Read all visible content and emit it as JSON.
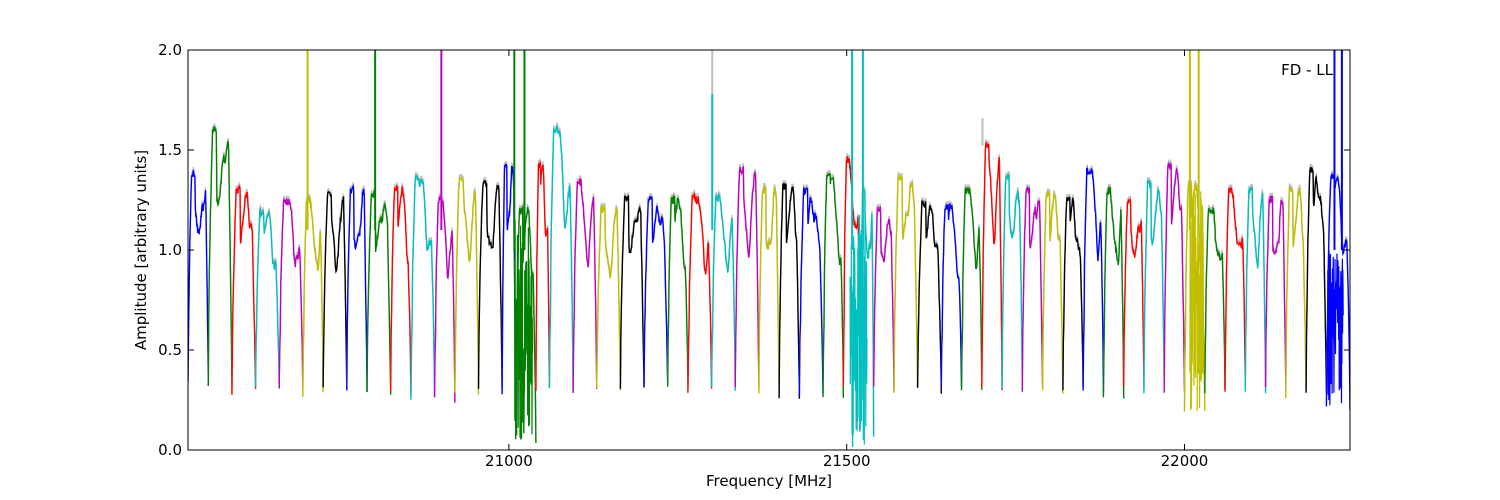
{
  "chart_data": {
    "type": "line",
    "title": "",
    "xlabel": "Frequency [MHz]",
    "ylabel": "Amplitude [arbitrary units]",
    "xlim": [
      20525,
      22245
    ],
    "ylim": [
      0.0,
      2.0
    ],
    "x_ticks": [
      21000,
      21500,
      22000
    ],
    "x_tick_labels": [
      "21000",
      "21500",
      "22000"
    ],
    "y_ticks": [
      0.0,
      0.5,
      1.0,
      1.5,
      2.0
    ],
    "y_tick_labels": [
      "0.0",
      "0.5",
      "1.0",
      "1.5",
      "2.0"
    ],
    "grid": false,
    "annotation": "FD - LL",
    "raw_trace_color": "#bfbfbf",
    "series_colors": [
      "#0000ff",
      "#008000",
      "#ff0000",
      "#00bfbf",
      "#bf00bf",
      "#bfbf00",
      "#000000"
    ],
    "windows": [
      {
        "start": 20525,
        "end": 20555,
        "color": "#0000ff",
        "peak": 1.38,
        "base": 0.32
      },
      {
        "start": 20555,
        "end": 20590,
        "color": "#008000",
        "peak": 1.6,
        "base": 0.32
      },
      {
        "start": 20590,
        "end": 20625,
        "color": "#ff0000",
        "peak": 1.3,
        "base": 0.29
      },
      {
        "start": 20625,
        "end": 20660,
        "color": "#00bfbf",
        "peak": 1.19,
        "base": 0.3
      },
      {
        "start": 20660,
        "end": 20695,
        "color": "#bf00bf",
        "peak": 1.24,
        "base": 0.3
      },
      {
        "start": 20695,
        "end": 20725,
        "color": "#bfbf00",
        "peak": 1.25,
        "base": 0.28
      },
      {
        "start": 20725,
        "end": 20760,
        "color": "#000000",
        "peak": 1.28,
        "base": 0.3
      },
      {
        "start": 20760,
        "end": 20790,
        "color": "#0000ff",
        "peak": 1.3,
        "base": 0.3
      },
      {
        "start": 20790,
        "end": 20825,
        "color": "#008000",
        "peak": 1.28,
        "base": 0.27
      },
      {
        "start": 20825,
        "end": 20855,
        "color": "#ff0000",
        "peak": 1.3,
        "base": 0.29
      },
      {
        "start": 20855,
        "end": 20890,
        "color": "#00bfbf",
        "peak": 1.35,
        "base": 0.27
      },
      {
        "start": 20890,
        "end": 20920,
        "color": "#bf00bf",
        "peak": 1.25,
        "base": 0.25
      },
      {
        "start": 20920,
        "end": 20955,
        "color": "#bfbf00",
        "peak": 1.35,
        "base": 0.27
      },
      {
        "start": 20955,
        "end": 20990,
        "color": "#000000",
        "peak": 1.33,
        "base": 0.3
      },
      {
        "start": 20990,
        "end": 21010,
        "color": "#0000ff",
        "peak": 1.43,
        "base": 0.29
      },
      {
        "start": 21010,
        "end": 21040,
        "color": "#008000",
        "peak": 1.2,
        "base": 0.05
      },
      {
        "start": 21040,
        "end": 21060,
        "color": "#ff0000",
        "peak": 1.42,
        "base": 0.3
      },
      {
        "start": 21060,
        "end": 21095,
        "color": "#00bfbf",
        "peak": 1.6,
        "base": 0.3
      },
      {
        "start": 21095,
        "end": 21130,
        "color": "#bf00bf",
        "peak": 1.34,
        "base": 0.3
      },
      {
        "start": 21130,
        "end": 21165,
        "color": "#bfbf00",
        "peak": 1.2,
        "base": 0.29
      },
      {
        "start": 21165,
        "end": 21200,
        "color": "#000000",
        "peak": 1.26,
        "base": 0.32
      },
      {
        "start": 21200,
        "end": 21235,
        "color": "#0000ff",
        "peak": 1.25,
        "base": 0.33
      },
      {
        "start": 21235,
        "end": 21265,
        "color": "#008000",
        "peak": 1.25,
        "base": 0.32
      },
      {
        "start": 21265,
        "end": 21300,
        "color": "#ff0000",
        "peak": 1.26,
        "base": 0.3
      },
      {
        "start": 21300,
        "end": 21335,
        "color": "#00bfbf",
        "peak": 1.26,
        "base": 0.3
      },
      {
        "start": 21335,
        "end": 21370,
        "color": "#bf00bf",
        "peak": 1.4,
        "base": 0.3
      },
      {
        "start": 21370,
        "end": 21400,
        "color": "#bfbf00",
        "peak": 1.3,
        "base": 0.28
      },
      {
        "start": 21400,
        "end": 21430,
        "color": "#000000",
        "peak": 1.32,
        "base": 0.25
      },
      {
        "start": 21430,
        "end": 21465,
        "color": "#0000ff",
        "peak": 1.3,
        "base": 0.28
      },
      {
        "start": 21465,
        "end": 21495,
        "color": "#008000",
        "peak": 1.37,
        "base": 0.27
      },
      {
        "start": 21495,
        "end": 21520,
        "color": "#ff0000",
        "peak": 1.45,
        "base": 0.3
      },
      {
        "start": 21520,
        "end": 21540,
        "color": "#00bfbf",
        "peak": 1.3,
        "base": 0.08
      },
      {
        "start": 21540,
        "end": 21570,
        "color": "#bf00bf",
        "peak": 1.2,
        "base": 0.3
      },
      {
        "start": 21570,
        "end": 21605,
        "color": "#bfbf00",
        "peak": 1.36,
        "base": 0.3
      },
      {
        "start": 21605,
        "end": 21640,
        "color": "#000000",
        "peak": 1.23,
        "base": 0.3
      },
      {
        "start": 21640,
        "end": 21670,
        "color": "#0000ff",
        "peak": 1.22,
        "base": 0.3
      },
      {
        "start": 21670,
        "end": 21700,
        "color": "#008000",
        "peak": 1.3,
        "base": 0.3
      },
      {
        "start": 21700,
        "end": 21730,
        "color": "#ff0000",
        "peak": 1.52,
        "base": 0.3
      },
      {
        "start": 21730,
        "end": 21760,
        "color": "#00bfbf",
        "peak": 1.36,
        "base": 0.3
      },
      {
        "start": 21760,
        "end": 21790,
        "color": "#bf00bf",
        "peak": 1.3,
        "base": 0.3
      },
      {
        "start": 21790,
        "end": 21820,
        "color": "#bfbf00",
        "peak": 1.28,
        "base": 0.3
      },
      {
        "start": 21820,
        "end": 21850,
        "color": "#000000",
        "peak": 1.25,
        "base": 0.3
      },
      {
        "start": 21850,
        "end": 21880,
        "color": "#0000ff",
        "peak": 1.4,
        "base": 0.3
      },
      {
        "start": 21880,
        "end": 21910,
        "color": "#008000",
        "peak": 1.3,
        "base": 0.25
      },
      {
        "start": 21910,
        "end": 21940,
        "color": "#ff0000",
        "peak": 1.24,
        "base": 0.3
      },
      {
        "start": 21940,
        "end": 21970,
        "color": "#00bfbf",
        "peak": 1.33,
        "base": 0.3
      },
      {
        "start": 21970,
        "end": 22000,
        "color": "#bf00bf",
        "peak": 1.42,
        "base": 0.3
      },
      {
        "start": 22000,
        "end": 22030,
        "color": "#bfbf00",
        "peak": 1.32,
        "base": 0.19
      },
      {
        "start": 22030,
        "end": 22060,
        "color": "#008000",
        "peak": 1.2,
        "base": 0.3
      },
      {
        "start": 22060,
        "end": 22090,
        "color": "#ff0000",
        "peak": 1.3,
        "base": 0.3
      },
      {
        "start": 22090,
        "end": 22120,
        "color": "#00bfbf",
        "peak": 1.3,
        "base": 0.3
      },
      {
        "start": 22120,
        "end": 22150,
        "color": "#bf00bf",
        "peak": 1.25,
        "base": 0.3
      },
      {
        "start": 22150,
        "end": 22180,
        "color": "#bfbf00",
        "peak": 1.3,
        "base": 0.28
      },
      {
        "start": 22180,
        "end": 22210,
        "color": "#000000",
        "peak": 1.4,
        "base": 0.29
      },
      {
        "start": 22210,
        "end": 22245,
        "color": "#0000ff",
        "peak": 1.36,
        "base": 0.21
      }
    ],
    "spikes": [
      {
        "x": 20702,
        "color": "#bfbf00",
        "bottom": 1.1,
        "top": 2.0
      },
      {
        "x": 20802,
        "color": "#008000",
        "bottom": 1.1,
        "top": 2.0
      },
      {
        "x": 20900,
        "color": "#bf00bf",
        "bottom": 1.1,
        "top": 2.0
      },
      {
        "x": 21008,
        "color": "#008000",
        "bottom": 1.0,
        "top": 2.0
      },
      {
        "x": 21023,
        "color": "#008000",
        "bottom": 1.0,
        "top": 2.0
      },
      {
        "x": 21301,
        "color": "#00bfbf",
        "bottom": 1.1,
        "top": 1.78
      },
      {
        "x": 21301,
        "color": "#bfbfbf",
        "bottom": 1.78,
        "top": 2.0
      },
      {
        "x": 21508,
        "color": "#00bfbf",
        "bottom": 1.0,
        "top": 2.0
      },
      {
        "x": 21524,
        "color": "#00bfbf",
        "bottom": 1.0,
        "top": 2.0
      },
      {
        "x": 21701,
        "color": "#bfbfbf",
        "bottom": 1.52,
        "top": 1.66
      },
      {
        "x": 22008,
        "color": "#bfbf00",
        "bottom": 1.1,
        "top": 2.0
      },
      {
        "x": 22021,
        "color": "#bfbf00",
        "bottom": 1.1,
        "top": 2.0
      },
      {
        "x": 22222,
        "color": "#0000ff",
        "bottom": 1.0,
        "top": 2.0
      },
      {
        "x": 22233,
        "color": "#0000ff",
        "bottom": 1.0,
        "top": 2.0
      }
    ],
    "rfi_regions": [
      {
        "start": 21008,
        "end": 21035,
        "color": "#008000",
        "low": 0.0,
        "high": 1.15
      },
      {
        "start": 21505,
        "end": 21530,
        "color": "#00bfbf",
        "low": 0.0,
        "high": 1.2
      },
      {
        "start": 22008,
        "end": 22028,
        "color": "#bfbf00",
        "low": 0.19,
        "high": 1.3
      },
      {
        "start": 22212,
        "end": 22235,
        "color": "#0000ff",
        "low": 0.21,
        "high": 1.0
      }
    ]
  }
}
